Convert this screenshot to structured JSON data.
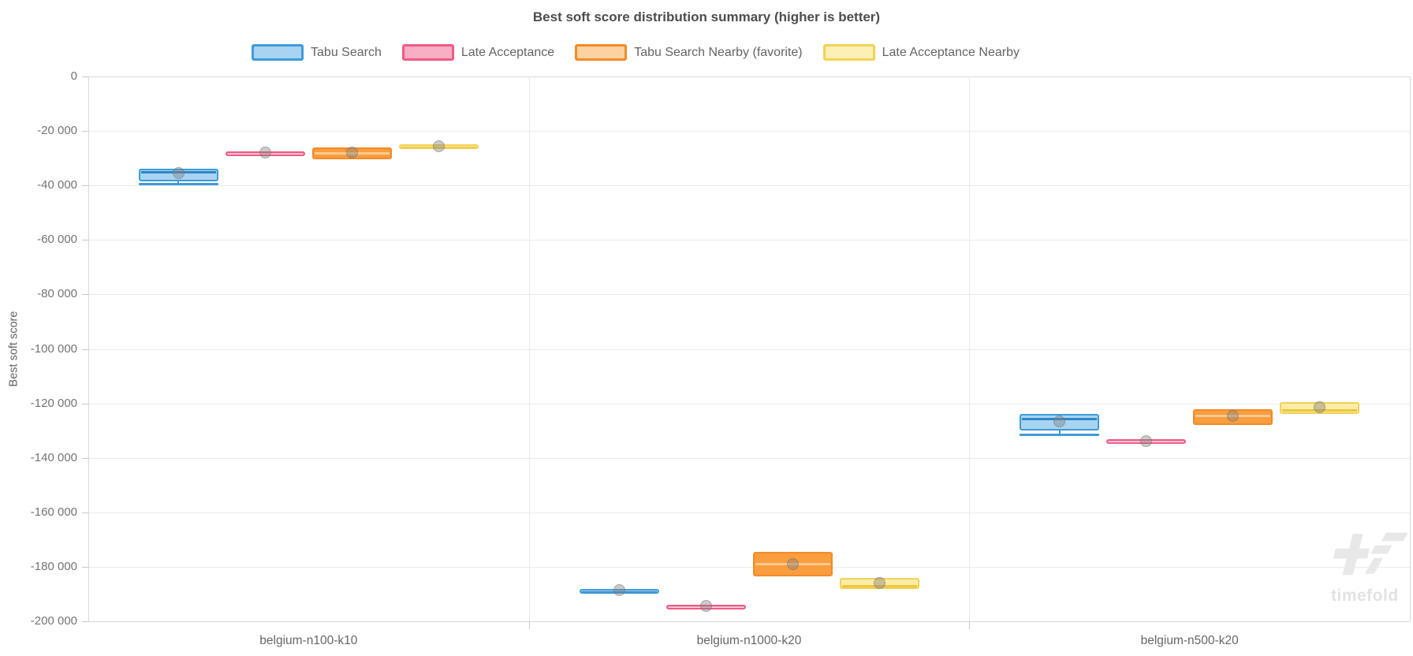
{
  "chart_data": {
    "type": "boxplot",
    "title": "Best soft score distribution summary (higher is better)",
    "ylabel": "Best soft score",
    "ylim": [
      -200000,
      0
    ],
    "grid": true,
    "legend_position": "top",
    "categories": [
      "belgium-n100-k10",
      "belgium-n1000-k20",
      "belgium-n500-k20"
    ],
    "y_ticks": [
      {
        "value": 0,
        "label": "0"
      },
      {
        "value": -20000,
        "label": "-20 000"
      },
      {
        "value": -40000,
        "label": "-40 000"
      },
      {
        "value": -60000,
        "label": "-60 000"
      },
      {
        "value": -80000,
        "label": "-80 000"
      },
      {
        "value": -100000,
        "label": "-100 000"
      },
      {
        "value": -120000,
        "label": "-120 000"
      },
      {
        "value": -140000,
        "label": "-140 000"
      },
      {
        "value": -160000,
        "label": "-160 000"
      },
      {
        "value": -180000,
        "label": "-180 000"
      },
      {
        "value": -200000,
        "label": "-200 000"
      }
    ],
    "mean_marker_color": "rgba(128,128,128,0.42)",
    "series": [
      {
        "name": "Tabu Search",
        "colors": {
          "border": "#3d9bd9",
          "fill": "#a9d4f1",
          "median": "#2f86c8",
          "legend_fill": "#a9d4f1"
        },
        "boxes": [
          {
            "min": -39500,
            "q1": -38500,
            "median": -34500,
            "q3": -34000,
            "max": -34000,
            "mean": -35500
          },
          {
            "min": -189500,
            "q1": -189500,
            "median": -188500,
            "q3": -188000,
            "max": -188000,
            "mean": -188500
          },
          {
            "min": -131500,
            "q1": -130000,
            "median": -125500,
            "q3": -124000,
            "max": -124000,
            "mean": -126500
          }
        ]
      },
      {
        "name": "Late Acceptance",
        "colors": {
          "border": "#ef5b86",
          "fill": "#f8aec4",
          "median": "#fbd4e0",
          "legend_fill": "#f8aec4"
        },
        "boxes": [
          {
            "min": -29000,
            "q1": -29000,
            "median": -28000,
            "q3": -27500,
            "max": -27500,
            "mean": -28000
          },
          {
            "min": -195000,
            "q1": -195000,
            "median": -194500,
            "q3": -194000,
            "max": -194000,
            "mean": -194500
          },
          {
            "min": -135000,
            "q1": -135000,
            "median": -134000,
            "q3": -133000,
            "max": -133000,
            "mean": -134000
          }
        ]
      },
      {
        "name": "Tabu Search Nearby (favorite)",
        "colors": {
          "border": "#f28b28",
          "fill": "#f99d3e",
          "median": "#fcc992",
          "legend_fill": "#fbd2a0"
        },
        "boxes": [
          {
            "min": -30500,
            "q1": -30500,
            "median": -28000,
            "q3": -26000,
            "max": -26000,
            "mean": -28000
          },
          {
            "min": -183500,
            "q1": -183500,
            "median": -179000,
            "q3": -174500,
            "max": -174500,
            "mean": -179000
          },
          {
            "min": -128000,
            "q1": -128000,
            "median": -124500,
            "q3": -122000,
            "max": -122000,
            "mean": -124500
          }
        ]
      },
      {
        "name": "Late Acceptance Nearby",
        "colors": {
          "border": "#f3d155",
          "fill": "#fbeca8",
          "median": "#edc73e",
          "legend_fill": "#fcf0b4"
        },
        "boxes": [
          {
            "min": -26500,
            "q1": -26500,
            "median": -26000,
            "q3": -25000,
            "max": -25000,
            "mean": -25500
          },
          {
            "min": -188000,
            "q1": -188000,
            "median": -187000,
            "q3": -184000,
            "max": -184000,
            "mean": -186000
          },
          {
            "min": -124000,
            "q1": -124000,
            "median": -122500,
            "q3": -119500,
            "max": -119500,
            "mean": -121500
          }
        ]
      }
    ]
  },
  "watermark": {
    "text": "timefold",
    "color": "#e8e8e8"
  }
}
